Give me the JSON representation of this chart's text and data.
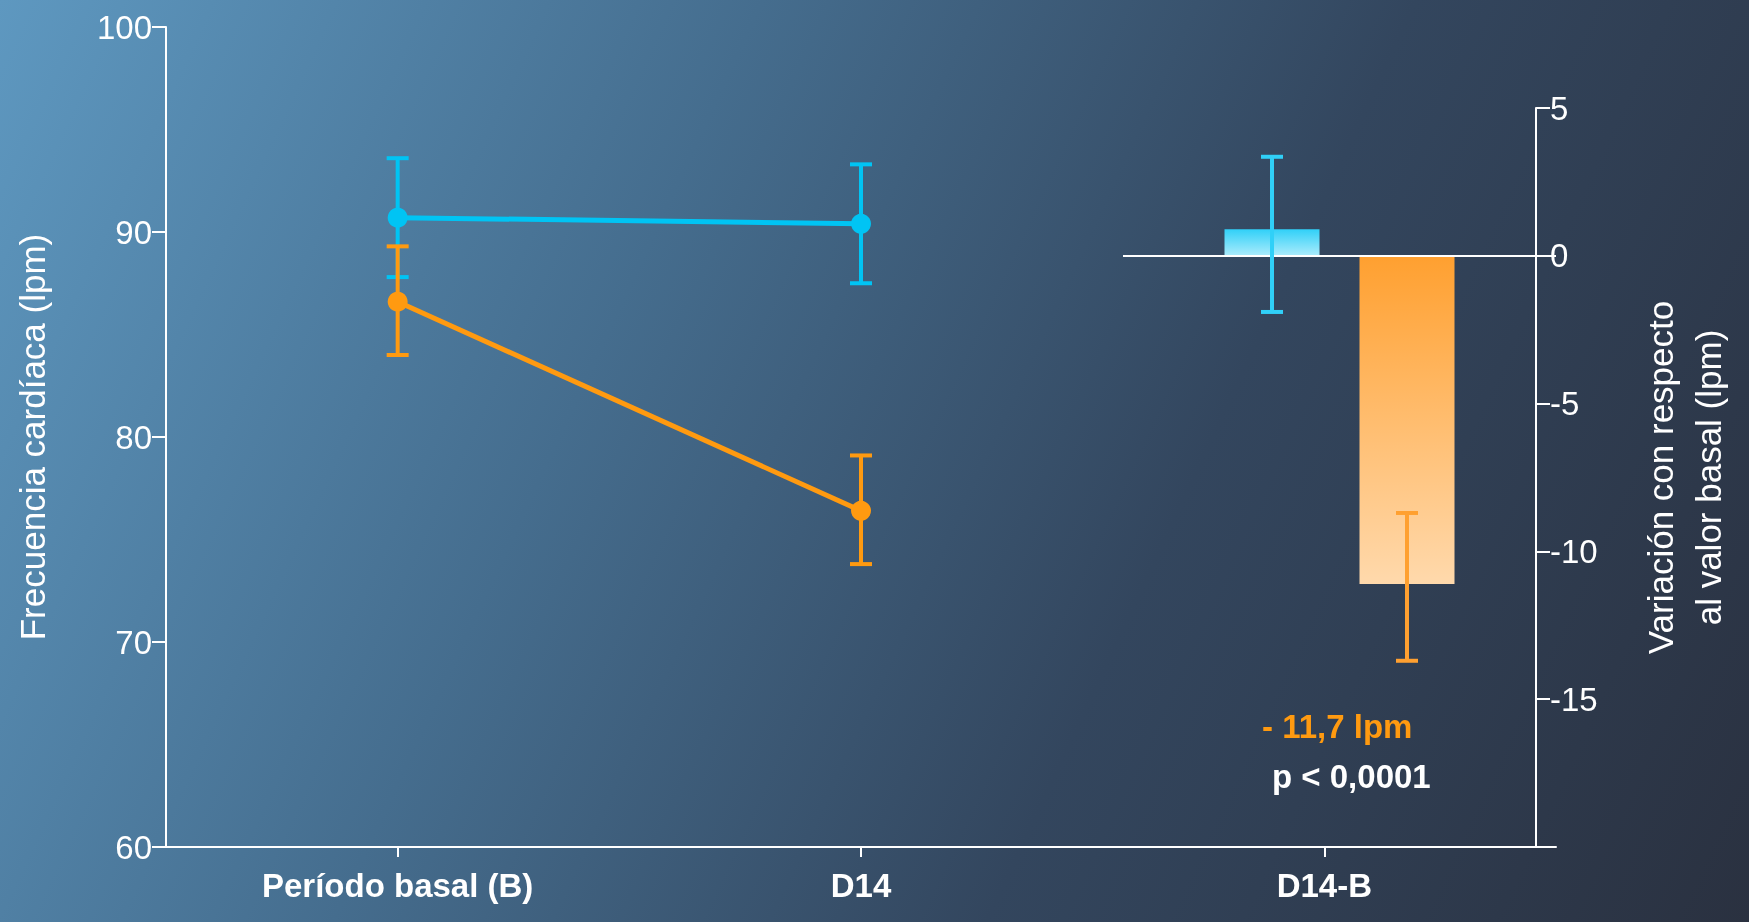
{
  "chart_data": {
    "type": "line",
    "categories": [
      "Período basal (B)",
      "D14",
      "D14-B"
    ],
    "ylabel": "Frecuencia cardíaca (lpm)",
    "y2label": "Variación con respecto al valor basal (lpm)",
    "ylim": [
      60,
      100
    ],
    "yticks": [
      60,
      70,
      80,
      90,
      100
    ],
    "y2lim": [
      -20,
      5
    ],
    "y2ticks": [
      -15,
      -10,
      -5,
      0,
      5
    ],
    "marker": "circle",
    "grid": false,
    "ref_lines": [
      {
        "axis": "y2",
        "value": 0,
        "color": "#ffffff"
      }
    ],
    "series": [
      {
        "color": "#00c4f4",
        "values": [
          90.7,
          90.4,
          null
        ],
        "errors": [
          [
            87.8,
            93.6
          ],
          [
            87.5,
            93.3
          ],
          null
        ]
      },
      {
        "color": "#ff9a10",
        "values": [
          86.6,
          76.4,
          null
        ],
        "errors": [
          [
            84.0,
            89.3
          ],
          [
            73.8,
            79.1
          ],
          null
        ]
      },
      {
        "type": "bar",
        "axis": "y2",
        "color": "#30d0f8",
        "values": [
          null,
          null,
          0.9
        ],
        "errors": [
          null,
          null,
          [
            -1.9,
            3.35
          ]
        ]
      },
      {
        "type": "bar",
        "axis": "y2",
        "color": "#ffa030",
        "values": [
          null,
          null,
          -11.1
        ],
        "errors": [
          null,
          null,
          [
            -13.7,
            -8.7
          ]
        ]
      }
    ],
    "annotations": [
      "- 11,7 lpm",
      "p < 0,0001"
    ]
  }
}
